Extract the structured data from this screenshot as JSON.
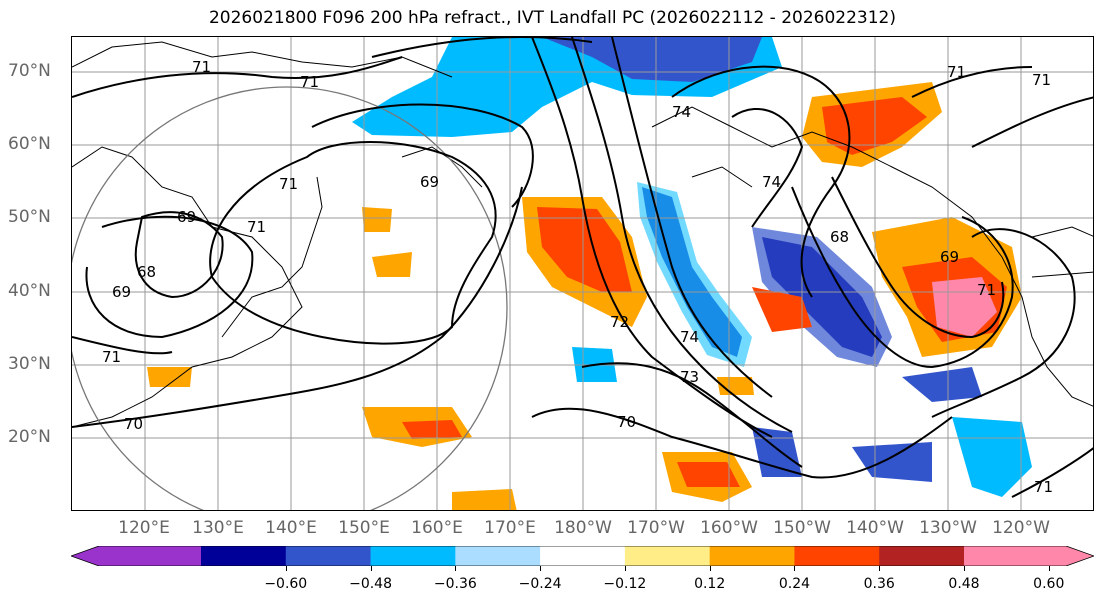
{
  "title": "2026021800 F096 200 hPa refract., IVT Landfall PC (2026022112 - 2026022312)",
  "lat_labels": [
    "70°N",
    "60°N",
    "50°N",
    "40°N",
    "30°N",
    "20°N"
  ],
  "lon_labels": [
    "120°E",
    "130°E",
    "140°E",
    "150°E",
    "160°E",
    "170°E",
    "180°W",
    "170°W",
    "160°W",
    "150°W",
    "140°W",
    "130°W",
    "120°W"
  ],
  "contour_labels": [
    "71",
    "71",
    "69",
    "71",
    "69",
    "68",
    "69",
    "71",
    "70",
    "71",
    "72",
    "73",
    "74",
    "70",
    "74",
    "68",
    "69",
    "71",
    "71",
    "71",
    "71",
    "74"
  ],
  "colorbar": {
    "colors": [
      "#9933cc",
      "#000099",
      "#3355cc",
      "#00bbff",
      "#aaddff",
      "#ffffff",
      "#ffee88",
      "#ffa500",
      "#ff4400",
      "#b22222",
      "#ff88aa"
    ],
    "tick_labels": [
      "−0.60",
      "−0.48",
      "−0.36",
      "−0.24",
      "−0.12",
      "0.12",
      "0.24",
      "0.36",
      "0.48",
      "0.60"
    ]
  }
}
